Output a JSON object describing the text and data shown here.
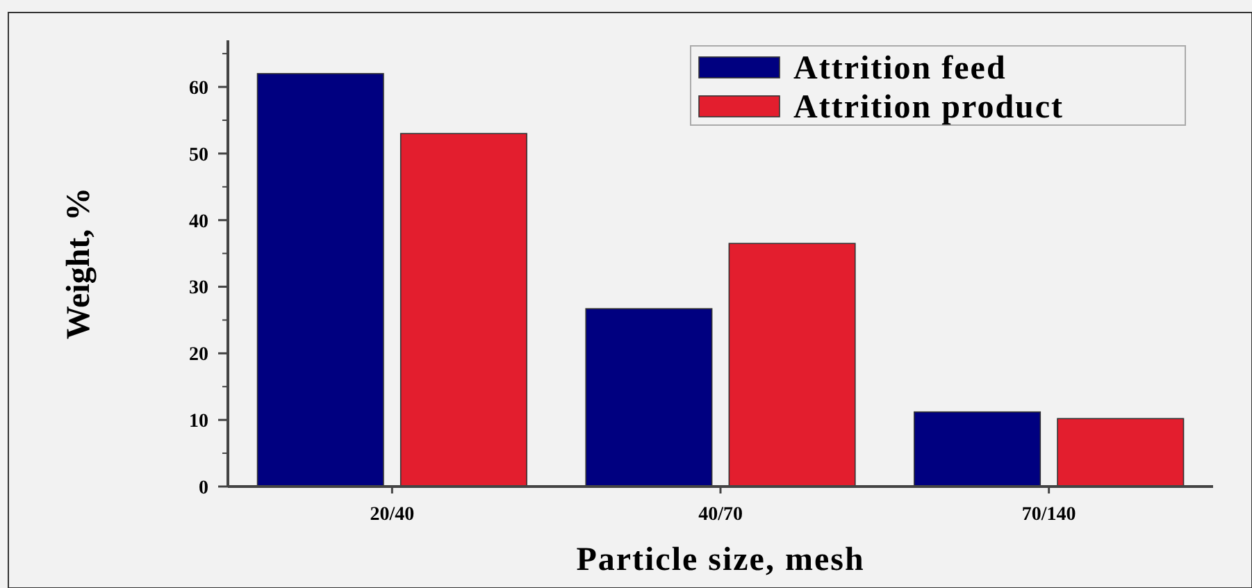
{
  "chart_data": {
    "type": "bar",
    "xlabel": "Particle size, mesh",
    "ylabel": "Weight, %",
    "categories": [
      "20/40",
      "40/70",
      "70/140"
    ],
    "series": [
      {
        "name": "Attrition feed",
        "color": "#000080",
        "values": [
          62,
          26.7,
          11.2
        ]
      },
      {
        "name": "Attrition product",
        "color": "#e31e2e",
        "values": [
          53,
          36.5,
          10.2
        ]
      }
    ],
    "ylim": [
      0,
      67
    ],
    "yticks": [
      0,
      10,
      20,
      30,
      40,
      50,
      60
    ],
    "legend": "top right",
    "grid": false
  }
}
